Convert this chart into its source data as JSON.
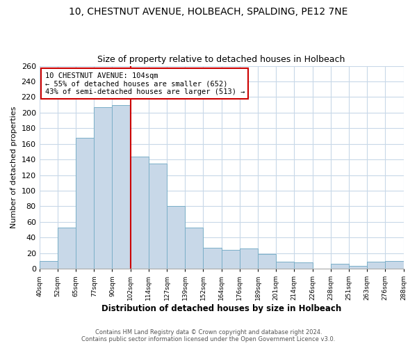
{
  "title1": "10, CHESTNUT AVENUE, HOLBEACH, SPALDING, PE12 7NE",
  "title2": "Size of property relative to detached houses in Holbeach",
  "xlabel": "Distribution of detached houses by size in Holbeach",
  "ylabel": "Number of detached properties",
  "bar_labels": [
    "40sqm",
    "52sqm",
    "65sqm",
    "77sqm",
    "90sqm",
    "102sqm",
    "114sqm",
    "127sqm",
    "139sqm",
    "152sqm",
    "164sqm",
    "176sqm",
    "189sqm",
    "201sqm",
    "214sqm",
    "226sqm",
    "238sqm",
    "251sqm",
    "263sqm",
    "276sqm",
    "288sqm"
  ],
  "bar_values": [
    10,
    53,
    168,
    207,
    210,
    144,
    135,
    80,
    53,
    27,
    24,
    26,
    19,
    9,
    8,
    0,
    6,
    4,
    9,
    10
  ],
  "bar_color": "#c8d8e8",
  "bar_edge_color": "#7aafc8",
  "vline_color": "#cc0000",
  "annotation_title": "10 CHESTNUT AVENUE: 104sqm",
  "annotation_line1": "← 55% of detached houses are smaller (652)",
  "annotation_line2": "43% of semi-detached houses are larger (513) →",
  "annotation_box_color": "#ffffff",
  "annotation_box_edge": "#cc0000",
  "ylim": [
    0,
    260
  ],
  "yticks": [
    0,
    20,
    40,
    60,
    80,
    100,
    120,
    140,
    160,
    180,
    200,
    220,
    240,
    260
  ],
  "footer1": "Contains HM Land Registry data © Crown copyright and database right 2024.",
  "footer2": "Contains public sector information licensed under the Open Government Licence v3.0.",
  "bg_color": "#ffffff",
  "grid_color": "#c8d8e8"
}
